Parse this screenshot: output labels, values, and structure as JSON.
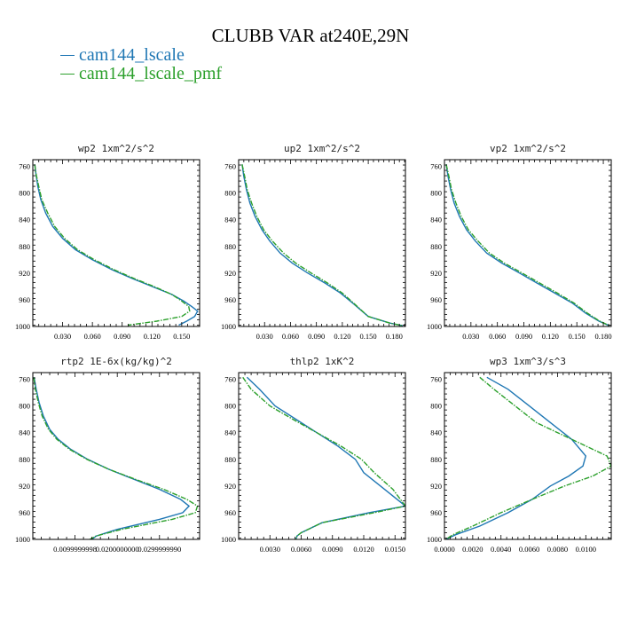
{
  "title": "CLUBB VAR at240E,29N",
  "legend": [
    {
      "label": "cam144_lscale",
      "color": "#1f77b4"
    },
    {
      "label": "cam144_lscale_pmf",
      "color": "#2ca02c"
    }
  ],
  "chart_data": [
    {
      "type": "line",
      "title": "wp2   1xm^2/s^2",
      "xlim": [
        0,
        0.168
      ],
      "ylim": [
        1000,
        750
      ],
      "xticks": [
        0.03,
        0.06,
        0.09,
        0.12,
        0.15
      ],
      "xtick_labels": [
        "0.030",
        "0.060",
        "0.090",
        "0.120",
        "0.150"
      ],
      "yticks": [
        760,
        800,
        840,
        880,
        920,
        960,
        1000
      ],
      "series": [
        {
          "name": "cam144_lscale",
          "x": [
            0.002,
            0.003,
            0.005,
            0.008,
            0.013,
            0.02,
            0.03,
            0.043,
            0.06,
            0.08,
            0.1,
            0.12,
            0.14,
            0.152,
            0.16,
            0.166,
            0.163,
            0.155,
            0.147
          ],
          "y": [
            757,
            770,
            790,
            810,
            830,
            850,
            868,
            885,
            900,
            915,
            928,
            940,
            952,
            962,
            970,
            977,
            985,
            992,
            998
          ]
        },
        {
          "name": "cam144_lscale_pmf",
          "x": [
            0.002,
            0.003,
            0.006,
            0.009,
            0.015,
            0.022,
            0.032,
            0.045,
            0.062,
            0.082,
            0.102,
            0.122,
            0.14,
            0.15,
            0.157,
            0.158,
            0.15,
            0.125,
            0.096
          ],
          "y": [
            757,
            770,
            790,
            810,
            830,
            850,
            868,
            885,
            900,
            915,
            928,
            940,
            952,
            962,
            970,
            977,
            985,
            992,
            998
          ]
        }
      ]
    },
    {
      "type": "line",
      "title": "up2   1xm^2/s^2",
      "xlim": [
        0,
        0.193
      ],
      "ylim": [
        1000,
        750
      ],
      "xticks": [
        0.03,
        0.06,
        0.09,
        0.12,
        0.15,
        0.18
      ],
      "xtick_labels": [
        "0.030",
        "0.060",
        "0.090",
        "0.120",
        "0.150",
        "0.180"
      ],
      "yticks": [
        760,
        800,
        840,
        880,
        920,
        960,
        1000
      ],
      "series": [
        {
          "name": "cam144_lscale",
          "x": [
            0.004,
            0.006,
            0.009,
            0.013,
            0.019,
            0.027,
            0.036,
            0.048,
            0.062,
            0.08,
            0.1,
            0.118,
            0.132,
            0.15,
            0.175,
            0.19
          ],
          "y": [
            757,
            775,
            795,
            815,
            835,
            855,
            872,
            890,
            905,
            920,
            935,
            950,
            965,
            985,
            995,
            999
          ]
        },
        {
          "name": "cam144_lscale_pmf",
          "x": [
            0.004,
            0.007,
            0.01,
            0.015,
            0.021,
            0.029,
            0.039,
            0.052,
            0.066,
            0.084,
            0.103,
            0.12,
            0.133,
            0.15,
            0.175,
            0.19
          ],
          "y": [
            757,
            775,
            795,
            815,
            835,
            855,
            872,
            890,
            905,
            920,
            935,
            950,
            965,
            985,
            995,
            999
          ]
        }
      ]
    },
    {
      "type": "line",
      "title": "vp2   1xm^2/s^2",
      "xlim": [
        0,
        0.189
      ],
      "ylim": [
        1000,
        750
      ],
      "xticks": [
        0.03,
        0.06,
        0.09,
        0.12,
        0.15,
        0.18
      ],
      "xtick_labels": [
        "0.030",
        "0.060",
        "0.090",
        "0.120",
        "0.150",
        "0.180"
      ],
      "yticks": [
        760,
        800,
        840,
        880,
        920,
        960,
        1000
      ],
      "series": [
        {
          "name": "cam144_lscale",
          "x": [
            0.002,
            0.004,
            0.007,
            0.011,
            0.017,
            0.025,
            0.035,
            0.048,
            0.065,
            0.085,
            0.105,
            0.125,
            0.145,
            0.16,
            0.175,
            0.187
          ],
          "y": [
            757,
            775,
            795,
            815,
            835,
            855,
            872,
            890,
            905,
            920,
            935,
            950,
            965,
            980,
            992,
            999
          ]
        },
        {
          "name": "cam144_lscale_pmf",
          "x": [
            0.002,
            0.005,
            0.008,
            0.013,
            0.019,
            0.027,
            0.038,
            0.051,
            0.068,
            0.088,
            0.108,
            0.128,
            0.147,
            0.162,
            0.176,
            0.187
          ],
          "y": [
            757,
            775,
            795,
            815,
            835,
            855,
            872,
            890,
            905,
            920,
            935,
            950,
            965,
            980,
            992,
            999
          ]
        }
      ]
    },
    {
      "type": "line",
      "title": "rtp2   1E-6x(kg/kg)^2",
      "xlim": [
        0,
        0.0395
      ],
      "ylim": [
        1000,
        750
      ],
      "xticks": [
        0.01,
        0.02,
        0.03
      ],
      "xtick_labels": [
        "0.0099999998",
        "0.0200000000",
        "0.0299999990"
      ],
      "yticks": [
        760,
        800,
        840,
        880,
        920,
        960,
        1000
      ],
      "series": [
        {
          "name": "cam144_lscale",
          "x": [
            0.0003,
            0.0008,
            0.0015,
            0.0025,
            0.004,
            0.006,
            0.009,
            0.013,
            0.018,
            0.024,
            0.03,
            0.035,
            0.037,
            0.0355,
            0.03,
            0.02,
            0.015,
            0.014
          ],
          "y": [
            757,
            775,
            795,
            815,
            835,
            850,
            865,
            880,
            895,
            910,
            925,
            940,
            950,
            960,
            970,
            985,
            995,
            1000
          ]
        },
        {
          "name": "cam144_lscale_pmf",
          "x": [
            0.0002,
            0.0006,
            0.0013,
            0.0022,
            0.0037,
            0.0057,
            0.0087,
            0.0128,
            0.018,
            0.0243,
            0.031,
            0.0365,
            0.039,
            0.0385,
            0.033,
            0.021,
            0.015,
            0.0135
          ],
          "y": [
            757,
            775,
            795,
            815,
            835,
            850,
            865,
            880,
            895,
            910,
            925,
            940,
            950,
            960,
            970,
            985,
            995,
            1000
          ]
        }
      ]
    },
    {
      "type": "line",
      "title": "thlp2   1xK^2",
      "xlim": [
        0,
        0.016
      ],
      "ylim": [
        1000,
        750
      ],
      "xticks": [
        0.003,
        0.006,
        0.009,
        0.012,
        0.015
      ],
      "xtick_labels": [
        "0.0030",
        "0.0060",
        "0.0090",
        "0.0120",
        "0.0150"
      ],
      "yticks": [
        760,
        800,
        840,
        880,
        920,
        960,
        1000
      ],
      "series": [
        {
          "name": "cam144_lscale",
          "x": [
            0.0008,
            0.002,
            0.0035,
            0.0055,
            0.0075,
            0.0095,
            0.0112,
            0.012,
            0.014,
            0.016,
            0.0125,
            0.008,
            0.006,
            0.0056,
            0.0055
          ],
          "y": [
            757,
            775,
            800,
            820,
            840,
            860,
            880,
            900,
            925,
            950,
            960,
            975,
            990,
            995,
            1000
          ]
        },
        {
          "name": "cam144_lscale_pmf",
          "x": [
            0.0004,
            0.0012,
            0.003,
            0.0052,
            0.0075,
            0.0098,
            0.0118,
            0.013,
            0.0148,
            0.016,
            0.013,
            0.008,
            0.006,
            0.0056,
            0.0055
          ],
          "y": [
            757,
            775,
            800,
            820,
            840,
            860,
            880,
            900,
            925,
            950,
            960,
            975,
            990,
            995,
            1000
          ]
        }
      ]
    },
    {
      "type": "line",
      "title": "wp3   1xm^3/s^3",
      "xlim": [
        0,
        0.0118
      ],
      "ylim": [
        1000,
        750
      ],
      "xticks": [
        0.0,
        0.002,
        0.004,
        0.006,
        0.008,
        0.01
      ],
      "xtick_labels": [
        "0.0000",
        "0.0020",
        "0.0040",
        "0.0060",
        "0.0080",
        "0.0100"
      ],
      "yticks": [
        760,
        800,
        840,
        880,
        920,
        960,
        1000
      ],
      "series": [
        {
          "name": "cam144_lscale",
          "x": [
            0.003,
            0.0045,
            0.006,
            0.0075,
            0.009,
            0.01,
            0.0098,
            0.0088,
            0.0075,
            0.0062,
            0.0045,
            0.0025,
            0.0008,
            0.0001
          ],
          "y": [
            757,
            775,
            800,
            825,
            850,
            875,
            890,
            905,
            920,
            940,
            960,
            980,
            993,
            1000
          ]
        },
        {
          "name": "cam144_lscale_pmf",
          "x": [
            0.0025,
            0.0035,
            0.005,
            0.0065,
            0.009,
            0.0115,
            0.0118,
            0.0105,
            0.0085,
            0.0062,
            0.004,
            0.002,
            0.0006,
            0.0001
          ],
          "y": [
            757,
            775,
            800,
            825,
            850,
            875,
            890,
            905,
            920,
            940,
            960,
            980,
            993,
            1000
          ]
        }
      ]
    }
  ]
}
